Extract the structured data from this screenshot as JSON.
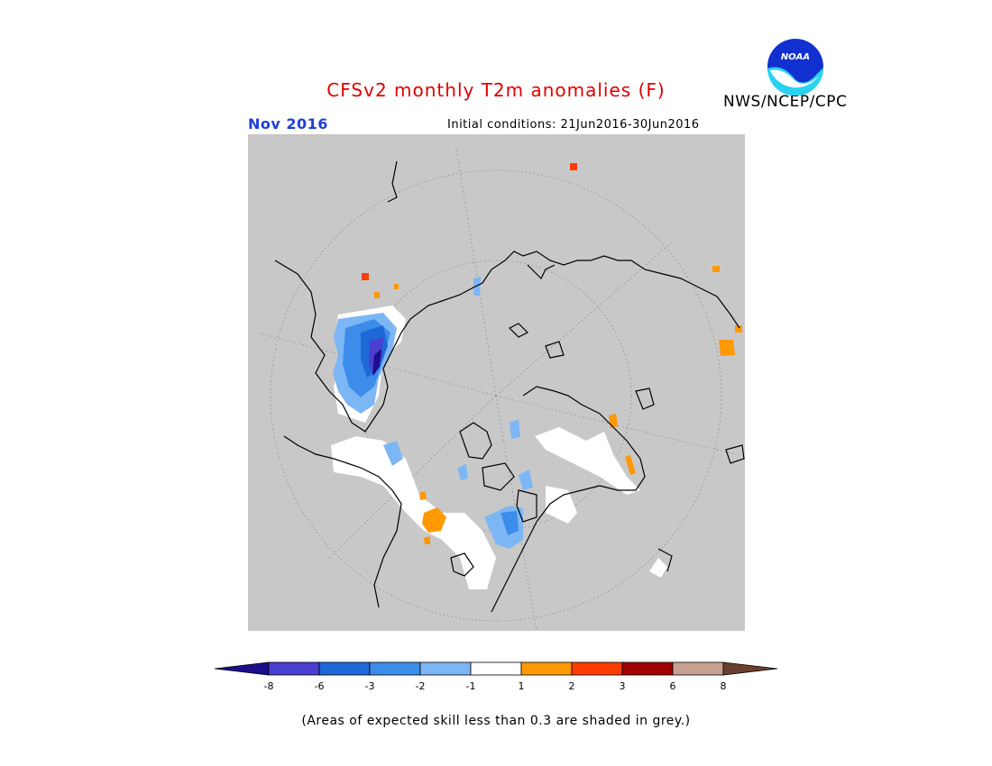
{
  "title": "CFSv2 monthly T2m anomalies (F)",
  "month": "Nov 2016",
  "initial_conditions": "Initial conditions: 21Jun2016-30Jun2016",
  "agency": "NWS/NCEP/CPC",
  "logo_text": "NOAA",
  "footnote": "(Areas of expected skill less than 0.3 are shaded in grey.)",
  "colors": {
    "low_skill_grey": "#c8c8c8",
    "title_red": "#e00000",
    "month_blue": "#1f3fd6"
  },
  "legend": {
    "colors": [
      "#1c0e8c",
      "#4a3fd0",
      "#1f68d8",
      "#3c8cea",
      "#7db6f4",
      "#ffffff",
      "#ff9900",
      "#ff3c00",
      "#a00000",
      "#c8a090",
      "#6b4030"
    ],
    "labels": [
      "-8",
      "-6",
      "-3",
      "-2",
      "-1",
      "1",
      "2",
      "3",
      "6",
      "8"
    ]
  }
}
